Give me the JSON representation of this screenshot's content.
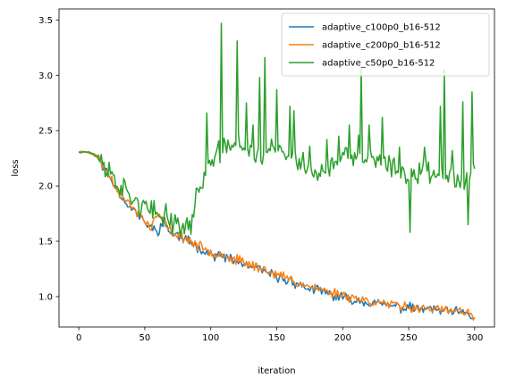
{
  "chart_data": {
    "type": "line",
    "title": "",
    "xlabel": "iteration",
    "ylabel": "loss",
    "xlim": [
      -15,
      315
    ],
    "ylim": [
      0.725,
      3.6
    ],
    "xticks": [
      0,
      50,
      100,
      150,
      200,
      250,
      300
    ],
    "yticks": [
      1.0,
      1.5,
      2.0,
      2.5,
      3.0,
      3.5
    ],
    "grid": false,
    "legend_position": "top-right",
    "series": [
      {
        "name": "adaptive_c100p0_b16-512",
        "color": "#1f77b4",
        "anchors": [
          [
            0,
            2.31
          ],
          [
            5,
            2.31
          ],
          [
            10,
            2.29
          ],
          [
            15,
            2.25
          ],
          [
            20,
            2.14
          ],
          [
            25,
            2.05
          ],
          [
            30,
            1.95
          ],
          [
            35,
            1.86
          ],
          [
            40,
            1.8
          ],
          [
            45,
            1.74
          ],
          [
            50,
            1.67
          ],
          [
            55,
            1.62
          ],
          [
            60,
            1.6
          ],
          [
            65,
            1.68
          ],
          [
            70,
            1.57
          ],
          [
            75,
            1.55
          ],
          [
            80,
            1.52
          ],
          [
            85,
            1.49
          ],
          [
            90,
            1.45
          ],
          [
            95,
            1.42
          ],
          [
            100,
            1.38
          ],
          [
            105,
            1.37
          ],
          [
            110,
            1.36
          ],
          [
            115,
            1.33
          ],
          [
            120,
            1.31
          ],
          [
            125,
            1.29
          ],
          [
            130,
            1.27
          ],
          [
            135,
            1.25
          ],
          [
            140,
            1.23
          ],
          [
            145,
            1.2
          ],
          [
            150,
            1.18
          ],
          [
            155,
            1.16
          ],
          [
            160,
            1.14
          ],
          [
            165,
            1.12
          ],
          [
            170,
            1.09
          ],
          [
            175,
            1.07
          ],
          [
            180,
            1.06
          ],
          [
            185,
            1.04
          ],
          [
            190,
            1.02
          ],
          [
            195,
            1.0
          ],
          [
            200,
            0.99
          ],
          [
            205,
            0.98
          ],
          [
            210,
            0.97
          ],
          [
            215,
            0.96
          ],
          [
            220,
            0.95
          ],
          [
            225,
            0.94
          ],
          [
            230,
            0.93
          ],
          [
            235,
            0.92
          ],
          [
            240,
            0.91
          ],
          [
            245,
            0.9
          ],
          [
            250,
            0.9
          ],
          [
            255,
            0.89
          ],
          [
            260,
            0.89
          ],
          [
            265,
            0.88
          ],
          [
            270,
            0.88
          ],
          [
            275,
            0.87
          ],
          [
            280,
            0.86
          ],
          [
            285,
            0.86
          ],
          [
            290,
            0.85
          ],
          [
            295,
            0.84
          ],
          [
            300,
            0.8
          ]
        ],
        "noise": 0.055,
        "seed": 11
      },
      {
        "name": "adaptive_c200p0_b16-512",
        "color": "#ff7f0e",
        "anchors": [
          [
            0,
            2.31
          ],
          [
            5,
            2.31
          ],
          [
            10,
            2.29
          ],
          [
            15,
            2.25
          ],
          [
            20,
            2.15
          ],
          [
            25,
            2.06
          ],
          [
            30,
            1.96
          ],
          [
            35,
            1.87
          ],
          [
            40,
            1.81
          ],
          [
            45,
            1.75
          ],
          [
            50,
            1.68
          ],
          [
            55,
            1.63
          ],
          [
            60,
            1.75
          ],
          [
            65,
            1.66
          ],
          [
            70,
            1.58
          ],
          [
            75,
            1.56
          ],
          [
            80,
            1.53
          ],
          [
            85,
            1.5
          ],
          [
            90,
            1.46
          ],
          [
            95,
            1.43
          ],
          [
            100,
            1.4
          ],
          [
            105,
            1.4
          ],
          [
            110,
            1.38
          ],
          [
            115,
            1.35
          ],
          [
            120,
            1.33
          ],
          [
            125,
            1.31
          ],
          [
            130,
            1.29
          ],
          [
            135,
            1.27
          ],
          [
            140,
            1.25
          ],
          [
            145,
            1.22
          ],
          [
            150,
            1.2
          ],
          [
            155,
            1.18
          ],
          [
            160,
            1.16
          ],
          [
            165,
            1.13
          ],
          [
            170,
            1.11
          ],
          [
            175,
            1.09
          ],
          [
            180,
            1.07
          ],
          [
            185,
            1.06
          ],
          [
            190,
            1.04
          ],
          [
            195,
            1.03
          ],
          [
            200,
            1.02
          ],
          [
            205,
            1.0
          ],
          [
            210,
            0.99
          ],
          [
            215,
            0.97
          ],
          [
            220,
            0.96
          ],
          [
            225,
            0.95
          ],
          [
            230,
            0.94
          ],
          [
            235,
            0.93
          ],
          [
            240,
            0.92
          ],
          [
            245,
            0.91
          ],
          [
            250,
            0.91
          ],
          [
            255,
            0.9
          ],
          [
            260,
            0.9
          ],
          [
            265,
            0.89
          ],
          [
            270,
            0.89
          ],
          [
            275,
            0.88
          ],
          [
            280,
            0.87
          ],
          [
            285,
            0.87
          ],
          [
            290,
            0.86
          ],
          [
            295,
            0.85
          ],
          [
            300,
            0.8
          ]
        ],
        "noise": 0.055,
        "seed": 23
      },
      {
        "name": "adaptive_c50p0_b16-512",
        "color": "#2ca02c",
        "anchors": [
          [
            0,
            2.31
          ],
          [
            5,
            2.31
          ],
          [
            10,
            2.3
          ],
          [
            15,
            2.26
          ],
          [
            20,
            2.17
          ],
          [
            25,
            2.1
          ],
          [
            30,
            2.02
          ],
          [
            35,
            1.95
          ],
          [
            40,
            1.9
          ],
          [
            45,
            1.85
          ],
          [
            50,
            1.8
          ],
          [
            55,
            1.76
          ],
          [
            60,
            1.72
          ],
          [
            65,
            1.75
          ],
          [
            70,
            1.7
          ],
          [
            75,
            1.65
          ],
          [
            80,
            1.62
          ],
          [
            85,
            1.65
          ],
          [
            90,
            1.95
          ],
          [
            95,
            2.1
          ],
          [
            100,
            2.2
          ],
          [
            110,
            2.35
          ],
          [
            120,
            2.4
          ],
          [
            130,
            2.3
          ],
          [
            140,
            2.28
          ],
          [
            150,
            2.35
          ],
          [
            160,
            2.25
          ],
          [
            170,
            2.2
          ],
          [
            180,
            2.1
          ],
          [
            190,
            2.15
          ],
          [
            200,
            2.25
          ],
          [
            210,
            2.25
          ],
          [
            220,
            2.25
          ],
          [
            230,
            2.2
          ],
          [
            240,
            2.15
          ],
          [
            250,
            2.1
          ],
          [
            260,
            2.15
          ],
          [
            270,
            2.1
          ],
          [
            280,
            2.15
          ],
          [
            290,
            2.05
          ],
          [
            300,
            2.1
          ]
        ],
        "noise": 0.13,
        "seed": 37,
        "spikes": [
          [
            97,
            2.66
          ],
          [
            108,
            3.47
          ],
          [
            112,
            2.3
          ],
          [
            120,
            3.31
          ],
          [
            127,
            2.75
          ],
          [
            132,
            2.55
          ],
          [
            137,
            2.98
          ],
          [
            141,
            3.16
          ],
          [
            150,
            2.87
          ],
          [
            160,
            2.72
          ],
          [
            163,
            2.68
          ],
          [
            175,
            2.36
          ],
          [
            188,
            2.42
          ],
          [
            197,
            2.45
          ],
          [
            205,
            2.55
          ],
          [
            212,
            2.46
          ],
          [
            214,
            3.05
          ],
          [
            220,
            2.55
          ],
          [
            230,
            2.62
          ],
          [
            243,
            2.35
          ],
          [
            251,
            1.58
          ],
          [
            262,
            2.35
          ],
          [
            274,
            2.72
          ],
          [
            277,
            3.05
          ],
          [
            283,
            2.32
          ],
          [
            291,
            2.76
          ],
          [
            295,
            1.65
          ],
          [
            298,
            2.85
          ]
        ]
      }
    ]
  }
}
